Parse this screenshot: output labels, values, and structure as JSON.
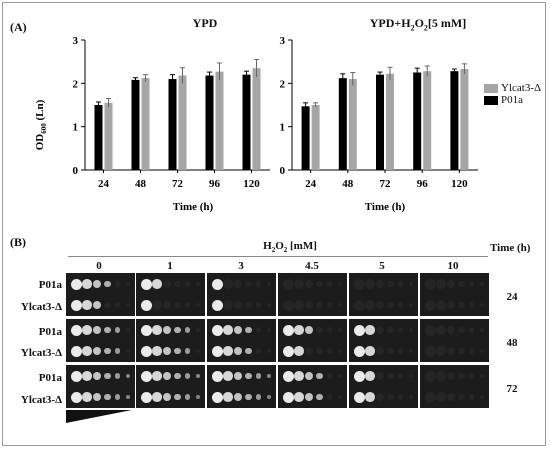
{
  "panel_a_label": "(A)",
  "panel_b_label": "(B)",
  "legend": {
    "mutant": "Ylcat3-Δ",
    "wildtype": "P01a",
    "mutant_color": "#a6a6a6",
    "wildtype_color": "#000000"
  },
  "chart_data": [
    {
      "type": "bar",
      "title": "YPD",
      "xlabel": "Time (h)",
      "ylabel": "OD600 (Ln)",
      "ylabel_parts": [
        "OD",
        "600",
        " (Ln)"
      ],
      "categories": [
        "24",
        "48",
        "72",
        "96",
        "120"
      ],
      "ylim": [
        0,
        3
      ],
      "yticks": [
        "0",
        "1",
        "2",
        "3"
      ],
      "series": [
        {
          "name": "P01a",
          "values": [
            1.5,
            2.08,
            2.1,
            2.18,
            2.2
          ],
          "errors": [
            0.07,
            0.05,
            0.1,
            0.08,
            0.08
          ]
        },
        {
          "name": "Ylcat3-Δ",
          "values": [
            1.55,
            2.12,
            2.18,
            2.27,
            2.35
          ],
          "errors": [
            0.1,
            0.08,
            0.18,
            0.2,
            0.2
          ]
        }
      ]
    },
    {
      "type": "bar",
      "title": "YPD+H2O2[5 mM]",
      "title_parts": [
        "YPD+H",
        "2",
        "O",
        "2",
        "[5 mM]"
      ],
      "xlabel": "Time (h)",
      "ylabel": "",
      "categories": [
        "24",
        "48",
        "72",
        "96",
        "120"
      ],
      "ylim": [
        0,
        3
      ],
      "yticks": [
        "0",
        "1",
        "2",
        "3"
      ],
      "series": [
        {
          "name": "P01a",
          "values": [
            1.47,
            2.12,
            2.2,
            2.25,
            2.28
          ],
          "errors": [
            0.08,
            0.1,
            0.06,
            0.1,
            0.05
          ]
        },
        {
          "name": "Ylcat3-Δ",
          "values": [
            1.5,
            2.1,
            2.22,
            2.28,
            2.33
          ],
          "errors": [
            0.05,
            0.15,
            0.15,
            0.12,
            0.12
          ]
        }
      ]
    }
  ],
  "panel_b": {
    "header_parts": [
      "H",
      "2",
      "O",
      "2",
      " [mM]"
    ],
    "time_header": "Time (h)",
    "concentrations": [
      "0",
      "1",
      "3",
      "4.5",
      "5",
      "10"
    ],
    "groups": [
      {
        "time": "24",
        "strains": [
          "P01a",
          "Ylcat3-Δ"
        ]
      },
      {
        "time": "48",
        "strains": [
          "P01a",
          "Ylcat3-Δ"
        ]
      },
      {
        "time": "72",
        "strains": [
          "P01a",
          "Ylcat3-Δ"
        ]
      }
    ]
  }
}
